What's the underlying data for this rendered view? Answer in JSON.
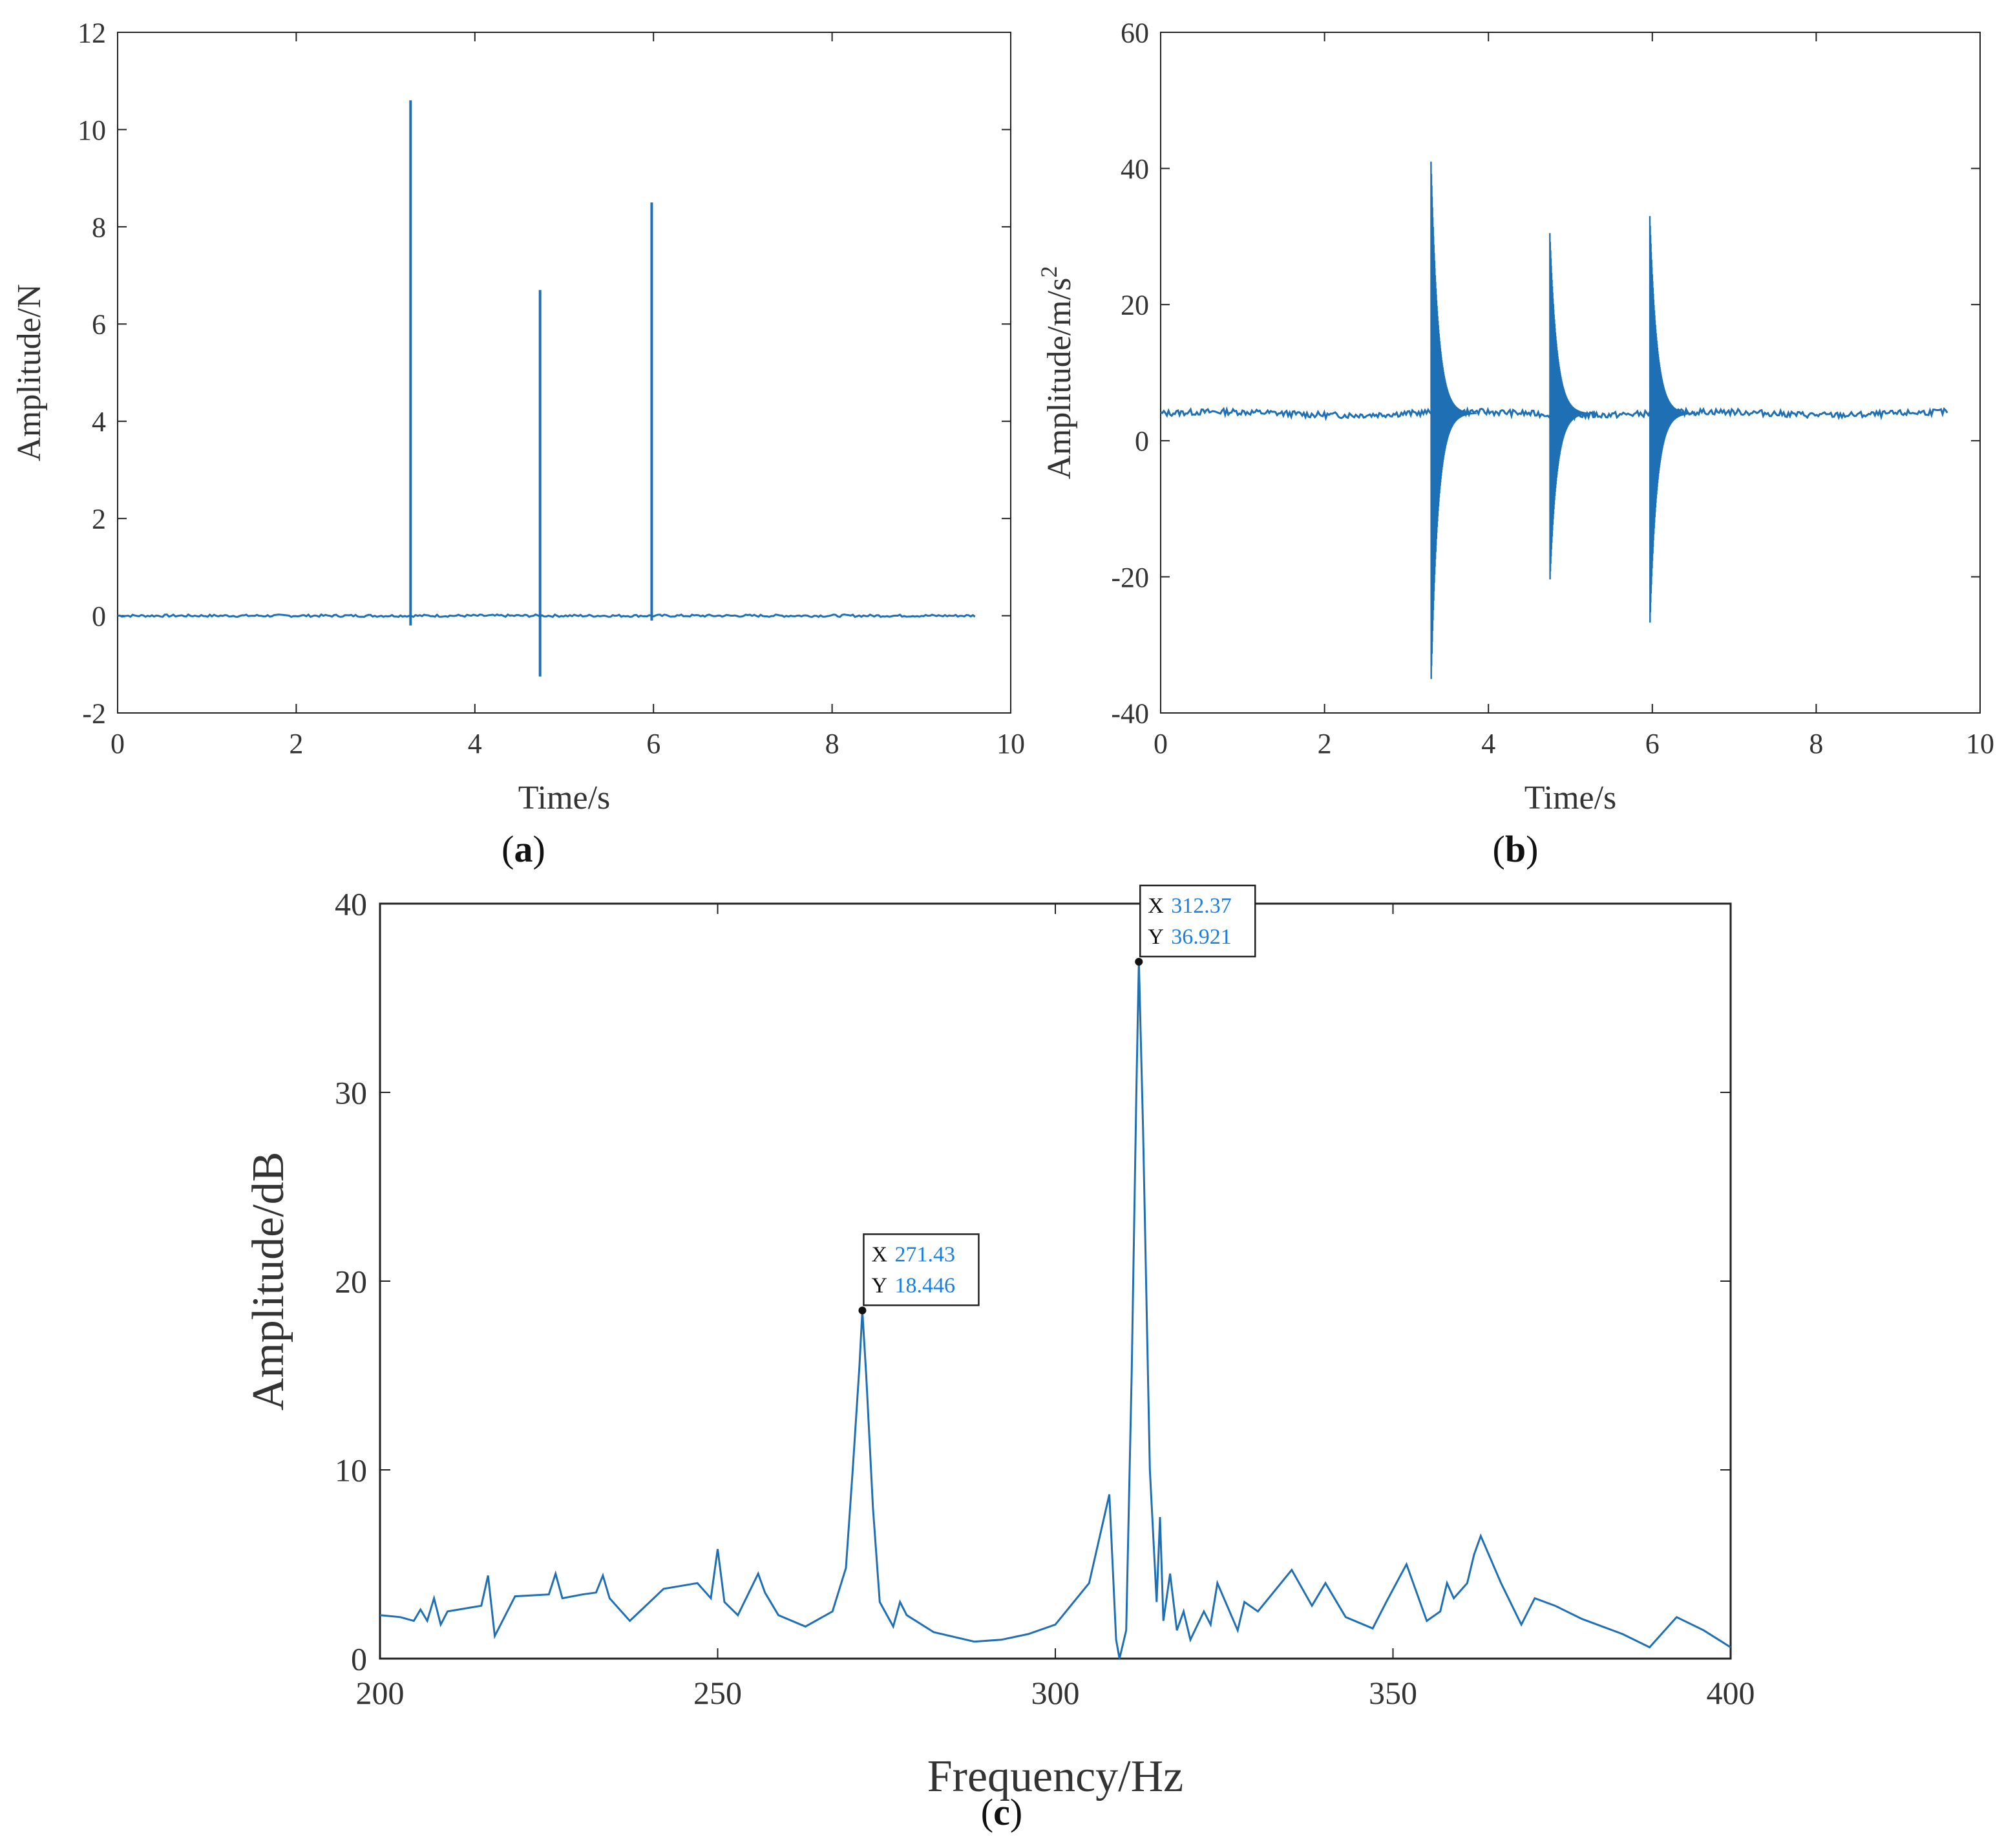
{
  "chart_data": [
    {
      "id": "a",
      "type": "line",
      "caption": "a",
      "xlabel": "Time/s",
      "ylabel": "Amplitude/N",
      "xlim": [
        0,
        10
      ],
      "ylim": [
        -2,
        12
      ],
      "xticks": [
        "0",
        "2",
        "4",
        "6",
        "8",
        "10"
      ],
      "yticks": [
        "-2",
        "0",
        "2",
        "4",
        "6",
        "8",
        "10",
        "12"
      ],
      "color": "#1f6fb5",
      "baseline": 0.0,
      "t_end": 9.6,
      "impulses": [
        {
          "t": 3.28,
          "peak": 10.6,
          "trough": -0.2
        },
        {
          "t": 4.73,
          "peak": 6.7,
          "trough": -1.25
        },
        {
          "t": 5.98,
          "peak": 8.5,
          "trough": -0.1
        }
      ]
    },
    {
      "id": "b",
      "type": "line",
      "caption": "b",
      "xlabel": "Time/s",
      "ylabel": "Amplitude/m/s",
      "ylabel_sup": "2",
      "xlim": [
        0,
        10
      ],
      "ylim": [
        -40,
        60
      ],
      "xticks": [
        "0",
        "2",
        "4",
        "6",
        "8",
        "10"
      ],
      "yticks": [
        "-40",
        "-20",
        "0",
        "20",
        "40",
        "60"
      ],
      "color": "#1f6fb5",
      "baseline": 4.0,
      "t_end": 9.6,
      "bursts": [
        {
          "t": 3.3,
          "peak": 41,
          "trough": -36
        },
        {
          "t": 4.75,
          "peak": 30.5,
          "trough": -21
        },
        {
          "t": 5.97,
          "peak": 33,
          "trough": -27.5
        }
      ]
    },
    {
      "id": "c",
      "type": "line",
      "caption": "c",
      "xlabel": "Frequency/Hz",
      "ylabel": "Amplitude/dB",
      "xlim": [
        200,
        400
      ],
      "ylim": [
        0,
        40
      ],
      "xticks": [
        "200",
        "250",
        "300",
        "350",
        "400"
      ],
      "yticks": [
        "0",
        "10",
        "20",
        "30",
        "40"
      ],
      "color": "#1f6fb5",
      "series": {
        "x": [
          200,
          203,
          205,
          206,
          207,
          208,
          209,
          210,
          215,
          216,
          217,
          220,
          225,
          226,
          227,
          230,
          232,
          233,
          234,
          237,
          242,
          247,
          249,
          250,
          251,
          253,
          256,
          257,
          259,
          263,
          267,
          269,
          270,
          271,
          271.43,
          272,
          273,
          274,
          276,
          277,
          278,
          282,
          288,
          292,
          296,
          300,
          305,
          308,
          309,
          309.5,
          310.5,
          311.3,
          312,
          312.37,
          313,
          314,
          315,
          315.5,
          316,
          317,
          318,
          319,
          320,
          322,
          323,
          324,
          327,
          328,
          330,
          335,
          338,
          340,
          343,
          347,
          349,
          352,
          355,
          357,
          358,
          359,
          361,
          362,
          363,
          366,
          369,
          370,
          371,
          374,
          378,
          384,
          388,
          392,
          396,
          400
        ],
        "y": [
          2.3,
          2.2,
          2.0,
          2.6,
          2.0,
          3.2,
          1.8,
          2.5,
          2.8,
          4.4,
          1.2,
          3.3,
          3.4,
          4.5,
          3.2,
          3.4,
          3.5,
          4.4,
          3.2,
          2.0,
          3.7,
          4.0,
          3.2,
          5.8,
          3.0,
          2.3,
          4.5,
          3.5,
          2.3,
          1.7,
          2.5,
          4.8,
          10.0,
          15.5,
          18.446,
          15.0,
          8.0,
          3.0,
          1.7,
          3.0,
          2.3,
          1.4,
          0.9,
          1.0,
          1.3,
          1.8,
          4.0,
          8.7,
          1.0,
          0.0,
          1.5,
          15.0,
          30.0,
          36.921,
          28.0,
          10.0,
          3.0,
          7.5,
          2.0,
          4.5,
          1.5,
          2.5,
          1.0,
          2.5,
          1.8,
          4.0,
          1.5,
          3.0,
          2.5,
          4.7,
          2.8,
          4.0,
          2.2,
          1.6,
          3.0,
          5.0,
          2.0,
          2.5,
          4.0,
          3.2,
          4.0,
          5.5,
          6.5,
          4.0,
          1.8,
          2.5,
          3.2,
          2.8,
          2.1,
          1.3,
          0.6,
          2.2,
          1.5,
          0.6
        ]
      },
      "annotations": [
        {
          "x": 271.43,
          "y": 18.446,
          "x_label": "X",
          "x_value": "271.43",
          "y_label": "Y",
          "y_value": "18.446"
        },
        {
          "x": 312.37,
          "y": 36.921,
          "x_label": "X",
          "x_value": "312.37",
          "y_label": "Y",
          "y_value": "36.921"
        }
      ]
    }
  ]
}
